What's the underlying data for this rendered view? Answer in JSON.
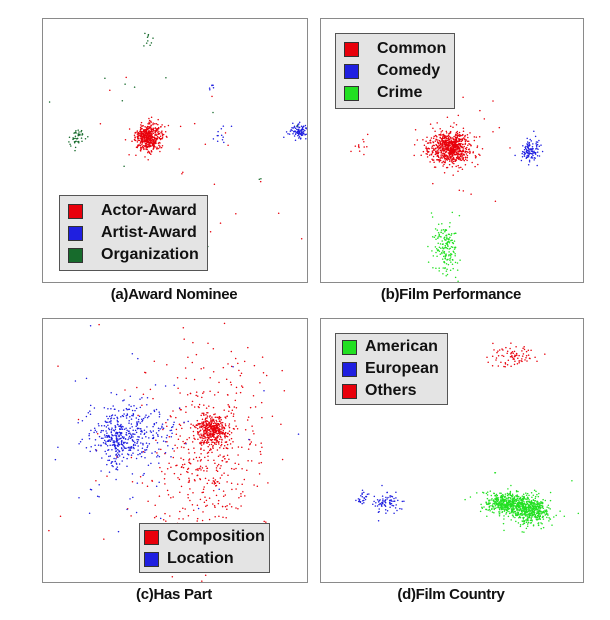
{
  "chart_data": [
    {
      "type": "scatter",
      "caption": "(a)Award Nominee",
      "legend": [
        {
          "label": "Actor-Award",
          "color": "#e8000b"
        },
        {
          "label": "Artist-Award",
          "color": "#1f1fe0"
        },
        {
          "label": "Organization",
          "color": "#176b2c"
        }
      ],
      "clusters": [
        {
          "series": 0,
          "cx": 0.4,
          "cy": 0.45,
          "sx": 0.025,
          "sy": 0.025,
          "n": 450
        },
        {
          "series": 0,
          "cx": 0.5,
          "cy": 0.5,
          "sx": 0.25,
          "sy": 0.25,
          "n": 25
        },
        {
          "series": 1,
          "cx": 0.97,
          "cy": 0.43,
          "sx": 0.02,
          "sy": 0.015,
          "n": 90
        },
        {
          "series": 1,
          "cx": 0.67,
          "cy": 0.45,
          "sx": 0.015,
          "sy": 0.02,
          "n": 12
        },
        {
          "series": 1,
          "cx": 0.64,
          "cy": 0.26,
          "sx": 0.005,
          "sy": 0.008,
          "n": 6
        },
        {
          "series": 2,
          "cx": 0.13,
          "cy": 0.45,
          "sx": 0.015,
          "sy": 0.018,
          "n": 45
        },
        {
          "series": 2,
          "cx": 0.4,
          "cy": 0.08,
          "sx": 0.01,
          "sy": 0.015,
          "n": 10
        },
        {
          "series": 2,
          "cx": 0.5,
          "cy": 0.5,
          "sx": 0.3,
          "sy": 0.3,
          "n": 15
        }
      ]
    },
    {
      "type": "scatter",
      "caption": "(b)Film Performance",
      "legend": [
        {
          "label": "Common",
          "color": "#e8000b"
        },
        {
          "label": "Comedy",
          "color": "#1f1fe0"
        },
        {
          "label": "Crime",
          "color": "#22e022"
        }
      ],
      "clusters": [
        {
          "series": 0,
          "cx": 0.49,
          "cy": 0.49,
          "sx": 0.04,
          "sy": 0.03,
          "n": 700
        },
        {
          "series": 0,
          "cx": 0.49,
          "cy": 0.49,
          "sx": 0.1,
          "sy": 0.09,
          "n": 40
        },
        {
          "series": 0,
          "cx": 0.16,
          "cy": 0.49,
          "sx": 0.02,
          "sy": 0.03,
          "n": 12
        },
        {
          "series": 0,
          "cx": 0.45,
          "cy": 0.08,
          "sx": 0.01,
          "sy": 0.01,
          "n": 6
        },
        {
          "series": 1,
          "cx": 0.8,
          "cy": 0.5,
          "sx": 0.018,
          "sy": 0.02,
          "n": 110
        },
        {
          "series": 2,
          "cx": 0.48,
          "cy": 0.87,
          "sx": 0.022,
          "sy": 0.05,
          "n": 140
        },
        {
          "series": 2,
          "cx": 0.47,
          "cy": 0.84,
          "sx": 0.04,
          "sy": 0.08,
          "n": 30
        }
      ]
    },
    {
      "type": "scatter",
      "caption": "(c)Has Part",
      "legend": [
        {
          "label": "Composition",
          "color": "#e8000b"
        },
        {
          "label": "Location",
          "color": "#1f1fe0"
        }
      ],
      "clusters": [
        {
          "series": 0,
          "cx": 0.64,
          "cy": 0.42,
          "sx": 0.03,
          "sy": 0.028,
          "n": 350
        },
        {
          "series": 0,
          "cx": 0.62,
          "cy": 0.52,
          "sx": 0.1,
          "sy": 0.18,
          "n": 450
        },
        {
          "series": 0,
          "cx": 0.55,
          "cy": 0.45,
          "sx": 0.25,
          "sy": 0.3,
          "n": 80
        },
        {
          "series": 1,
          "cx": 0.32,
          "cy": 0.44,
          "sx": 0.08,
          "sy": 0.06,
          "n": 350
        },
        {
          "series": 1,
          "cx": 0.28,
          "cy": 0.47,
          "sx": 0.02,
          "sy": 0.05,
          "n": 120
        },
        {
          "series": 1,
          "cx": 0.3,
          "cy": 0.45,
          "sx": 0.25,
          "sy": 0.25,
          "n": 60
        }
      ]
    },
    {
      "type": "scatter",
      "caption": "(d)Film Country",
      "legend": [
        {
          "label": "American",
          "color": "#22e022"
        },
        {
          "label": "European",
          "color": "#1f1fe0"
        },
        {
          "label": "Others",
          "color": "#e8000b"
        }
      ],
      "clusters": [
        {
          "series": 0,
          "cx": 0.72,
          "cy": 0.7,
          "sx": 0.045,
          "sy": 0.02,
          "n": 500
        },
        {
          "series": 0,
          "cx": 0.8,
          "cy": 0.73,
          "sx": 0.035,
          "sy": 0.025,
          "n": 350
        },
        {
          "series": 0,
          "cx": 0.74,
          "cy": 0.72,
          "sx": 0.1,
          "sy": 0.05,
          "n": 60
        },
        {
          "series": 1,
          "cx": 0.24,
          "cy": 0.7,
          "sx": 0.03,
          "sy": 0.018,
          "n": 80
        },
        {
          "series": 1,
          "cx": 0.16,
          "cy": 0.68,
          "sx": 0.012,
          "sy": 0.015,
          "n": 25
        },
        {
          "series": 2,
          "cx": 0.73,
          "cy": 0.14,
          "sx": 0.045,
          "sy": 0.022,
          "n": 80
        }
      ]
    }
  ]
}
